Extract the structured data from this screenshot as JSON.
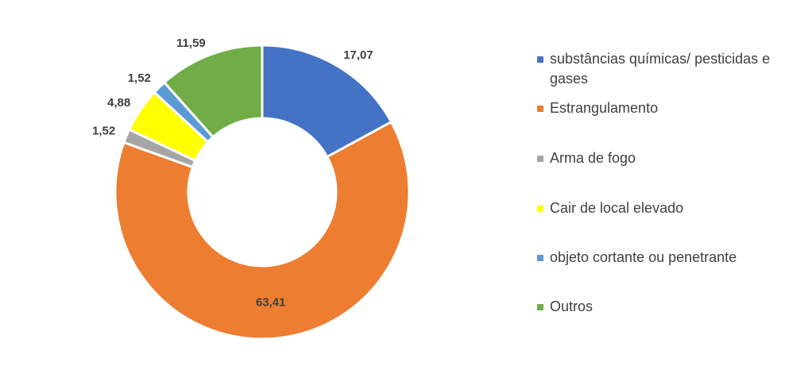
{
  "chart_data": {
    "type": "donut",
    "categories": [
      "substâncias químicas/ pesticidas e gases",
      "Estrangulamento",
      "Arma de fogo",
      "Cair de local elevado",
      "objeto cortante ou penetrante",
      "Outros"
    ],
    "values": [
      17.07,
      63.41,
      1.52,
      4.88,
      1.52,
      11.59
    ],
    "value_labels": [
      "17,07",
      "63,41",
      "1,52",
      "4,88",
      "1,52",
      "11,59"
    ],
    "colors": [
      "#4472c4",
      "#ed7d31",
      "#a5a5a5",
      "#ffff00",
      "#5b9bd5",
      "#70ad47"
    ],
    "legend": "right"
  }
}
